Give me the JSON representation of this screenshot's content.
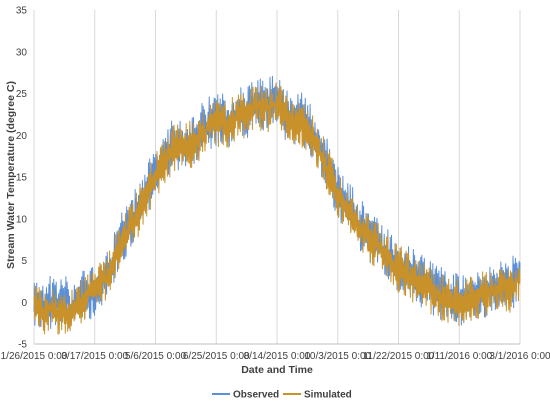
{
  "chart_data": {
    "type": "line",
    "title": "",
    "xlabel": "Date and Time",
    "ylabel": "Stream Water Temperature (degree C)",
    "ylim": [
      -5,
      35
    ],
    "y_ticks": [
      -5,
      0,
      5,
      10,
      15,
      20,
      25,
      30,
      35
    ],
    "x_tick_labels": [
      "1/26/2015 0:00",
      "3/17/2015 0:00",
      "5/6/2015 0:00",
      "6/25/2015 0:00",
      "8/14/2015 0:00",
      "10/3/2015 0:00",
      "11/22/2015 0:00",
      "1/11/2016 0:00",
      "3/1/2016 0:00"
    ],
    "x_tick_days": [
      0,
      50,
      100,
      150,
      200,
      250,
      300,
      350,
      400
    ],
    "xlim_days": [
      0,
      400
    ],
    "grid": "vertical gridlines",
    "legend_position": "bottom",
    "series": [
      {
        "name": "Observed",
        "color": "#5b8fd9",
        "x_days": [
          0,
          10,
          20,
          30,
          40,
          50,
          55,
          60,
          65,
          70,
          75,
          80,
          85,
          90,
          95,
          100,
          105,
          110,
          115,
          120,
          125,
          130,
          135,
          140,
          145,
          150,
          155,
          160,
          165,
          170,
          175,
          180,
          185,
          190,
          195,
          200,
          205,
          210,
          215,
          220,
          225,
          230,
          235,
          240,
          245,
          250,
          255,
          260,
          265,
          270,
          275,
          280,
          285,
          290,
          295,
          300,
          305,
          310,
          315,
          320,
          325,
          330,
          335,
          340,
          345,
          350,
          355,
          360,
          365,
          370,
          375,
          380,
          385,
          390,
          395,
          400
        ],
        "values": [
          0.3,
          -0.2,
          0.2,
          -0.3,
          0.5,
          1.2,
          2.5,
          3.5,
          5,
          7,
          8.5,
          9.5,
          11,
          12,
          14,
          15.5,
          17,
          18,
          19,
          19,
          18.5,
          19.5,
          20,
          21,
          21.5,
          22,
          22,
          21.5,
          22.5,
          23,
          22.5,
          23.5,
          24,
          23.5,
          24,
          24.5,
          23,
          22,
          22,
          22.5,
          21,
          20,
          18.5,
          17,
          15,
          13,
          12,
          11,
          10,
          9,
          8,
          7.5,
          7,
          6,
          5,
          4.5,
          4,
          3.5,
          3,
          2.5,
          2,
          1.5,
          1,
          0.8,
          0.5,
          0.3,
          0.5,
          0.8,
          1,
          1.2,
          1.5,
          2,
          2.5,
          2,
          2.5,
          3.5
        ],
        "noise": 2.0
      },
      {
        "name": "Simulated",
        "color": "#c8912a",
        "x_days": [
          0,
          10,
          20,
          30,
          40,
          50,
          55,
          60,
          65,
          70,
          75,
          80,
          85,
          90,
          95,
          100,
          105,
          110,
          115,
          120,
          125,
          130,
          135,
          140,
          145,
          150,
          155,
          160,
          165,
          170,
          175,
          180,
          185,
          190,
          195,
          200,
          205,
          210,
          215,
          220,
          225,
          230,
          235,
          240,
          245,
          250,
          255,
          260,
          265,
          270,
          275,
          280,
          285,
          290,
          295,
          300,
          305,
          310,
          315,
          320,
          325,
          330,
          335,
          340,
          345,
          350,
          355,
          360,
          365,
          370,
          375,
          380,
          385,
          390,
          395,
          400
        ],
        "values": [
          -0.5,
          -1,
          -1,
          -1.5,
          0,
          1.5,
          2.5,
          3,
          4.5,
          6.5,
          8,
          9.5,
          10.5,
          12,
          13.5,
          15,
          16.5,
          17.5,
          18.5,
          19,
          18.5,
          19,
          19.5,
          20.5,
          21,
          21.5,
          21.5,
          21,
          22,
          22.5,
          22,
          23,
          23.5,
          23,
          23.5,
          24,
          22.5,
          21.5,
          21.5,
          21.5,
          20.5,
          19.5,
          18,
          16.5,
          14.5,
          12.5,
          11.5,
          10.5,
          9.5,
          8.5,
          7.5,
          7,
          6.5,
          5.5,
          4.5,
          4,
          3.5,
          3,
          2.5,
          2,
          1.5,
          1,
          0.5,
          0.3,
          0,
          -0.2,
          0,
          0.3,
          0.5,
          0.8,
          1,
          1.5,
          2,
          1.5,
          2,
          3
        ],
        "noise": 1.8
      }
    ]
  }
}
